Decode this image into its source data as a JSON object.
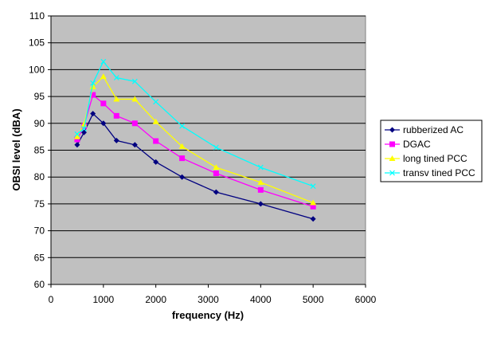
{
  "chart_data": {
    "type": "line",
    "title": "",
    "xlabel": "frequency (Hz)",
    "ylabel": "OBSI level (dBA)",
    "xlim": [
      0,
      6000
    ],
    "ylim": [
      60,
      110
    ],
    "xticks": [
      0,
      1000,
      2000,
      3000,
      4000,
      5000,
      6000
    ],
    "yticks": [
      60,
      65,
      70,
      75,
      80,
      85,
      90,
      95,
      100,
      105,
      110
    ],
    "grid": "horizontal",
    "plot_background": "#c0c0c0",
    "legend_position": "right",
    "series": [
      {
        "name": "rubberized AC",
        "color": "#000080",
        "marker": "diamond",
        "x": [
          500,
          630,
          800,
          1000,
          1250,
          1600,
          2000,
          2500,
          3150,
          4000,
          5000
        ],
        "y": [
          86.0,
          88.3,
          91.8,
          90.0,
          86.8,
          86.0,
          82.8,
          80.0,
          77.2,
          75.0,
          72.2
        ]
      },
      {
        "name": "DGAC",
        "color": "#ff00ff",
        "marker": "square",
        "x": [
          500,
          630,
          800,
          1000,
          1250,
          1600,
          2000,
          2500,
          3150,
          4000,
          5000
        ],
        "y": [
          87.0,
          89.5,
          95.3,
          93.7,
          91.4,
          90.0,
          86.7,
          83.5,
          80.7,
          77.6,
          74.5
        ]
      },
      {
        "name": "long tined PCC",
        "color": "#ffff00",
        "marker": "triangle",
        "x": [
          500,
          630,
          800,
          1000,
          1250,
          1600,
          2000,
          2500,
          3150,
          4000,
          5000
        ],
        "y": [
          87.5,
          89.8,
          96.8,
          98.7,
          94.5,
          94.5,
          90.3,
          85.7,
          81.8,
          79.0,
          75.2
        ]
      },
      {
        "name": "transv tined PCC",
        "color": "#00ffff",
        "marker": "x",
        "x": [
          500,
          630,
          800,
          1000,
          1250,
          1600,
          2000,
          2500,
          3150,
          4000,
          5000
        ],
        "y": [
          88.0,
          89.0,
          97.5,
          101.5,
          98.5,
          97.8,
          94.0,
          89.5,
          85.5,
          81.8,
          78.3
        ]
      }
    ]
  }
}
